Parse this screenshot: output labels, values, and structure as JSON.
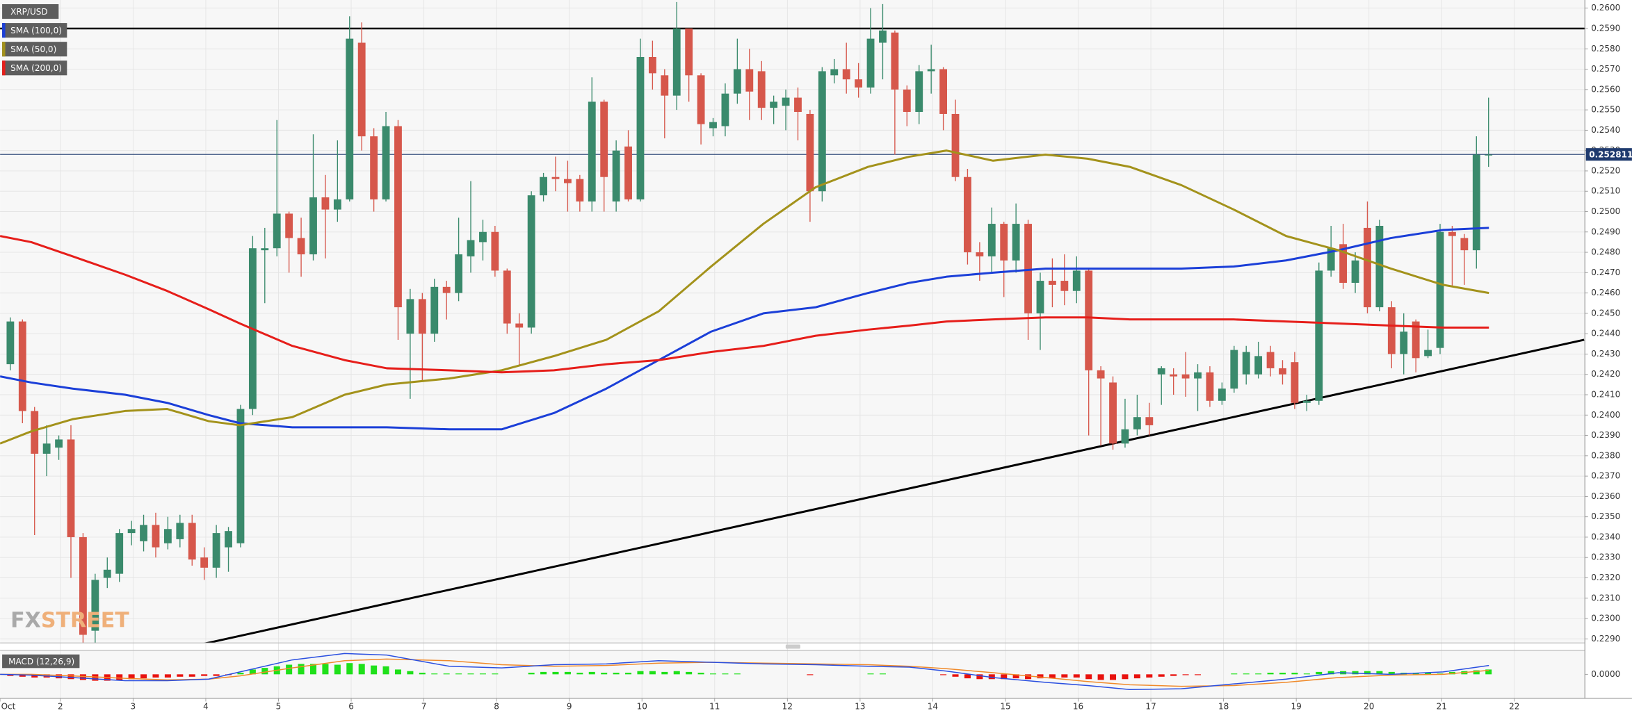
{
  "chart_data": {
    "type": "candlestick",
    "title": "XRP/USD",
    "xlim": [
      1.17,
      22.97
    ],
    "xticks": [
      {
        "value": 1,
        "label": "Oct"
      },
      2,
      3,
      4,
      5,
      6,
      7,
      8,
      9,
      10,
      11,
      12,
      13,
      14,
      15,
      16,
      17,
      18,
      19,
      20,
      21,
      22
    ],
    "ylim": [
      0.2288,
      0.2604
    ],
    "yticks": [
      {
        "value": 0.229,
        "label": "0.2290"
      },
      {
        "value": 0.23,
        "label": "0.2300"
      },
      {
        "value": 0.231,
        "label": "0.2310"
      },
      {
        "value": 0.232,
        "label": "0.2320"
      },
      {
        "value": 0.233,
        "label": "0.2330"
      },
      {
        "value": 0.234,
        "label": "0.2340"
      },
      {
        "value": 0.235,
        "label": "0.2350"
      },
      {
        "value": 0.236,
        "label": "0.2360"
      },
      {
        "value": 0.237,
        "label": "0.2370"
      },
      {
        "value": 0.238,
        "label": "0.2380"
      },
      {
        "value": 0.239,
        "label": "0.2390"
      },
      {
        "value": 0.24,
        "label": "0.2400"
      },
      {
        "value": 0.241,
        "label": "0.2410"
      },
      {
        "value": 0.242,
        "label": "0.2420"
      },
      {
        "value": 0.243,
        "label": "0.2430"
      },
      {
        "value": 0.244,
        "label": "0.2440"
      },
      {
        "value": 0.245,
        "label": "0.2450"
      },
      {
        "value": 0.246,
        "label": "0.2460"
      },
      {
        "value": 0.247,
        "label": "0.2470"
      },
      {
        "value": 0.248,
        "label": "0.2480"
      },
      {
        "value": 0.249,
        "label": "0.2490"
      },
      {
        "value": 0.25,
        "label": "0.2500"
      },
      {
        "value": 0.251,
        "label": "0.2510"
      },
      {
        "value": 0.252,
        "label": "0.2520"
      },
      {
        "value": 0.253,
        "label": "0.2530"
      },
      {
        "value": 0.254,
        "label": "0.2540"
      },
      {
        "value": 0.255,
        "label": "0.2550"
      },
      {
        "value": 0.256,
        "label": "0.2560"
      },
      {
        "value": 0.257,
        "label": "0.2570"
      },
      {
        "value": 0.258,
        "label": "0.2580"
      },
      {
        "value": 0.259,
        "label": "0.2590"
      },
      {
        "value": 0.26,
        "label": "0.2600"
      }
    ],
    "grid": true,
    "up_color": "#3a8a6c",
    "down_color": "#d6574b",
    "candles": [
      [
        0.2425,
        0.2448,
        0.2422,
        0.2446
      ],
      [
        0.2446,
        0.2447,
        0.2396,
        0.2402
      ],
      [
        0.2402,
        0.2404,
        0.2341,
        0.2381
      ],
      [
        0.2381,
        0.2395,
        0.237,
        0.2386
      ],
      [
        0.2384,
        0.239,
        0.2378,
        0.2388
      ],
      [
        0.2388,
        0.2395,
        0.232,
        0.234
      ],
      [
        0.234,
        0.2342,
        0.2283,
        0.2292
      ],
      [
        0.2294,
        0.2322,
        0.2288,
        0.2319
      ],
      [
        0.232,
        0.233,
        0.2315,
        0.2324
      ],
      [
        0.2322,
        0.2344,
        0.2318,
        0.2342
      ],
      [
        0.2342,
        0.2348,
        0.2336,
        0.2344
      ],
      [
        0.2338,
        0.2351,
        0.2333,
        0.2346
      ],
      [
        0.2346,
        0.2352,
        0.233,
        0.2335
      ],
      [
        0.2337,
        0.235,
        0.2334,
        0.2344
      ],
      [
        0.2339,
        0.2351,
        0.2335,
        0.2347
      ],
      [
        0.2347,
        0.2351,
        0.2326,
        0.2329
      ],
      [
        0.233,
        0.2335,
        0.2319,
        0.2325
      ],
      [
        0.2325,
        0.2346,
        0.232,
        0.2342
      ],
      [
        0.2335,
        0.2345,
        0.2323,
        0.2343
      ],
      [
        0.2337,
        0.2405,
        0.2335,
        0.2403
      ],
      [
        0.2403,
        0.2488,
        0.24,
        0.2482
      ],
      [
        0.2481,
        0.2492,
        0.2455,
        0.2482
      ],
      [
        0.2482,
        0.2545,
        0.2478,
        0.2499
      ],
      [
        0.2499,
        0.25,
        0.247,
        0.2487
      ],
      [
        0.2487,
        0.2497,
        0.2468,
        0.2479
      ],
      [
        0.2479,
        0.2538,
        0.2476,
        0.2507
      ],
      [
        0.2507,
        0.2518,
        0.2477,
        0.2501
      ],
      [
        0.2501,
        0.2535,
        0.2495,
        0.2506
      ],
      [
        0.2506,
        0.2596,
        0.2505,
        0.2585
      ],
      [
        0.2583,
        0.2593,
        0.253,
        0.2537
      ],
      [
        0.2537,
        0.2541,
        0.25,
        0.2506
      ],
      [
        0.2506,
        0.2549,
        0.2505,
        0.2542
      ],
      [
        0.2542,
        0.2545,
        0.2437,
        0.2453
      ],
      [
        0.244,
        0.2462,
        0.2408,
        0.2457
      ],
      [
        0.2457,
        0.246,
        0.2417,
        0.244
      ],
      [
        0.244,
        0.2467,
        0.2436,
        0.2463
      ],
      [
        0.2463,
        0.2466,
        0.2447,
        0.246
      ],
      [
        0.246,
        0.2497,
        0.2456,
        0.2479
      ],
      [
        0.2478,
        0.2515,
        0.247,
        0.2486
      ],
      [
        0.2485,
        0.2496,
        0.2476,
        0.249
      ],
      [
        0.249,
        0.2493,
        0.2468,
        0.2471
      ],
      [
        0.2471,
        0.2472,
        0.244,
        0.2445
      ],
      [
        0.2445,
        0.245,
        0.2424,
        0.2443
      ],
      [
        0.2443,
        0.251,
        0.244,
        0.2508
      ],
      [
        0.2508,
        0.2519,
        0.2505,
        0.2517
      ],
      [
        0.2517,
        0.2527,
        0.251,
        0.2516
      ],
      [
        0.2516,
        0.2525,
        0.25,
        0.2514
      ],
      [
        0.2516,
        0.2518,
        0.25,
        0.2505
      ],
      [
        0.2505,
        0.2566,
        0.25,
        0.2554
      ],
      [
        0.2554,
        0.2555,
        0.25,
        0.2517
      ],
      [
        0.2505,
        0.2535,
        0.25,
        0.253
      ],
      [
        0.2532,
        0.254,
        0.2505,
        0.2506
      ],
      [
        0.2506,
        0.2585,
        0.2505,
        0.2576
      ],
      [
        0.2576,
        0.2584,
        0.256,
        0.2568
      ],
      [
        0.2567,
        0.257,
        0.2536,
        0.2557
      ],
      [
        0.2557,
        0.2603,
        0.255,
        0.259
      ],
      [
        0.259,
        0.259,
        0.2554,
        0.2567
      ],
      [
        0.2567,
        0.2568,
        0.2533,
        0.2543
      ],
      [
        0.2541,
        0.2546,
        0.2537,
        0.2544
      ],
      [
        0.2542,
        0.2563,
        0.2537,
        0.2558
      ],
      [
        0.2558,
        0.2585,
        0.2553,
        0.257
      ],
      [
        0.257,
        0.258,
        0.2545,
        0.2559
      ],
      [
        0.2569,
        0.2574,
        0.2545,
        0.2551
      ],
      [
        0.2551,
        0.2557,
        0.2543,
        0.2554
      ],
      [
        0.2552,
        0.256,
        0.254,
        0.2556
      ],
      [
        0.2556,
        0.2561,
        0.2535,
        0.2549
      ],
      [
        0.2548,
        0.255,
        0.2495,
        0.251
      ],
      [
        0.251,
        0.2571,
        0.2505,
        0.2569
      ],
      [
        0.2567,
        0.2575,
        0.2563,
        0.257
      ],
      [
        0.257,
        0.2583,
        0.2558,
        0.2565
      ],
      [
        0.2565,
        0.2573,
        0.2556,
        0.2561
      ],
      [
        0.2561,
        0.26,
        0.2558,
        0.2585
      ],
      [
        0.2583,
        0.2602,
        0.2565,
        0.2589
      ],
      [
        0.2588,
        0.2589,
        0.2528,
        0.256
      ],
      [
        0.256,
        0.2562,
        0.2542,
        0.2549
      ],
      [
        0.2549,
        0.2572,
        0.2543,
        0.2569
      ],
      [
        0.2569,
        0.2582,
        0.2558,
        0.257
      ],
      [
        0.257,
        0.2571,
        0.254,
        0.2548
      ],
      [
        0.2548,
        0.2555,
        0.2515,
        0.2517
      ],
      [
        0.2517,
        0.2521,
        0.2474,
        0.248
      ],
      [
        0.248,
        0.2485,
        0.2466,
        0.2478
      ],
      [
        0.2478,
        0.2502,
        0.247,
        0.2494
      ],
      [
        0.2494,
        0.2495,
        0.2458,
        0.2476
      ],
      [
        0.2476,
        0.2504,
        0.247,
        0.2494
      ],
      [
        0.2494,
        0.2496,
        0.2437,
        0.245
      ],
      [
        0.245,
        0.247,
        0.2432,
        0.2466
      ],
      [
        0.2466,
        0.2477,
        0.2453,
        0.2464
      ],
      [
        0.2466,
        0.2479,
        0.2454,
        0.2461
      ],
      [
        0.2461,
        0.2478,
        0.2455,
        0.2471
      ],
      [
        0.2471,
        0.2472,
        0.239,
        0.2422
      ],
      [
        0.2422,
        0.2424,
        0.2385,
        0.2418
      ],
      [
        0.2416,
        0.2419,
        0.2383,
        0.2386
      ],
      [
        0.2386,
        0.2408,
        0.2384,
        0.2393
      ],
      [
        0.2393,
        0.241,
        0.239,
        0.2399
      ],
      [
        0.2399,
        0.2406,
        0.239,
        0.2395
      ],
      [
        0.242,
        0.2424,
        0.2405,
        0.2423
      ],
      [
        0.242,
        0.2423,
        0.241,
        0.2419
      ],
      [
        0.242,
        0.2431,
        0.2409,
        0.2418
      ],
      [
        0.2418,
        0.2425,
        0.2402,
        0.2421
      ],
      [
        0.2421,
        0.2424,
        0.2404,
        0.2407
      ],
      [
        0.2407,
        0.2416,
        0.2405,
        0.2413
      ],
      [
        0.2413,
        0.2434,
        0.2411,
        0.2432
      ],
      [
        0.242,
        0.2434,
        0.2415,
        0.2431
      ],
      [
        0.242,
        0.2436,
        0.2418,
        0.2429
      ],
      [
        0.2431,
        0.2434,
        0.2419,
        0.2423
      ],
      [
        0.2423,
        0.2427,
        0.2415,
        0.242
      ],
      [
        0.2426,
        0.2431,
        0.2403,
        0.2406
      ],
      [
        0.2406,
        0.241,
        0.2402,
        0.2407
      ],
      [
        0.2407,
        0.2475,
        0.2405,
        0.2471
      ],
      [
        0.2471,
        0.2493,
        0.2468,
        0.2482
      ],
      [
        0.2484,
        0.2494,
        0.2462,
        0.2465
      ],
      [
        0.2465,
        0.248,
        0.246,
        0.2476
      ],
      [
        0.2492,
        0.2505,
        0.245,
        0.2453
      ],
      [
        0.2453,
        0.2496,
        0.2451,
        0.2493
      ],
      [
        0.2453,
        0.2456,
        0.2423,
        0.243
      ],
      [
        0.243,
        0.245,
        0.242,
        0.2441
      ],
      [
        0.2446,
        0.2447,
        0.2421,
        0.2428
      ],
      [
        0.2429,
        0.2442,
        0.2428,
        0.2432
      ],
      [
        0.2433,
        0.2494,
        0.243,
        0.249
      ],
      [
        0.249,
        0.2493,
        0.2463,
        0.2488
      ],
      [
        0.2487,
        0.2489,
        0.2464,
        0.2481
      ],
      [
        0.2481,
        0.2537,
        0.2472,
        0.2528
      ],
      [
        0.2528,
        0.2556,
        0.2522,
        0.2528
      ]
    ],
    "x": [
      1.17,
      1.6,
      2.17,
      2.89,
      3.47,
      4.04,
      4.47,
      5.19,
      5.91,
      6.49,
      7.35,
      8.07,
      8.79,
      9.51,
      10.23,
      10.95,
      11.67,
      12.39,
      13.11,
      13.68,
      14.19,
      14.83,
      15.55,
      16.13,
      16.71,
      17.42,
      18.14,
      18.86,
      19.58,
      20.3,
      21.02,
      21.65
    ],
    "series": [
      {
        "name": "SMA (100,0)",
        "color": "#1b3fd8",
        "values": [
          0.2419,
          0.2416,
          0.2413,
          0.241,
          0.2406,
          0.24,
          0.2396,
          0.2394,
          0.2394,
          0.2394,
          0.2393,
          0.2393,
          0.2401,
          0.2413,
          0.2427,
          0.2441,
          0.245,
          0.2453,
          0.246,
          0.2465,
          0.2468,
          0.247,
          0.2472,
          0.2472,
          0.2472,
          0.2472,
          0.2473,
          0.2476,
          0.2481,
          0.2487,
          0.2491,
          0.2492
        ]
      },
      {
        "name": "SMA (50,0)",
        "color": "#a3921b",
        "values": [
          0.2386,
          0.2392,
          0.2398,
          0.2402,
          0.2403,
          0.2397,
          0.2395,
          0.2399,
          0.241,
          0.2415,
          0.2418,
          0.2422,
          0.2429,
          0.2437,
          0.2451,
          0.2473,
          0.2494,
          0.2512,
          0.2522,
          0.2527,
          0.253,
          0.2525,
          0.2528,
          0.2526,
          0.2522,
          0.2513,
          0.2501,
          0.2488,
          0.2481,
          0.2472,
          0.2464,
          0.246
        ]
      },
      {
        "name": "SMA (200,0)",
        "color": "#e61e1a",
        "values": [
          0.2488,
          0.2485,
          0.2478,
          0.2469,
          0.2461,
          0.2452,
          0.2445,
          0.2434,
          0.2427,
          0.2423,
          0.2422,
          0.2421,
          0.2422,
          0.2425,
          0.2427,
          0.2431,
          0.2434,
          0.2439,
          0.2442,
          0.2444,
          0.2446,
          0.2447,
          0.2448,
          0.2448,
          0.2447,
          0.2447,
          0.2447,
          0.2446,
          0.2445,
          0.2444,
          0.2443,
          0.2443
        ]
      }
    ],
    "resistance": {
      "value": 0.259,
      "color": "#000000"
    },
    "trendline": {
      "x": [
        3.9,
        22.96
      ],
      "values": [
        0.2287,
        0.2437
      ],
      "color": "#000000"
    },
    "last_price": 0.252811,
    "last_price_color": "#1f3a6e",
    "macd": {
      "title": "MACD (12,26,9)",
      "ylim": [
        -0.003,
        0.003
      ],
      "yticks": [
        {
          "value": 0,
          "label": "0.0000"
        }
      ],
      "up_color": "#1fe01a",
      "down_color": "#e8120e",
      "histogram": [
        -0.0002,
        -0.0003,
        -0.0004,
        -0.0004,
        -0.0005,
        -0.0006,
        -0.0007,
        -0.0008,
        -0.0008,
        -0.0007,
        -0.0006,
        -0.0005,
        -0.0004,
        -0.0004,
        -0.0003,
        -0.0003,
        -0.0002,
        -0.0002,
        -0.0001,
        0.0002,
        0.0006,
        0.0008,
        0.001,
        0.0012,
        0.0013,
        0.0013,
        0.0013,
        0.0012,
        0.0014,
        0.0013,
        0.0011,
        0.001,
        0.0006,
        0.0004,
        0.0002,
        0.0001,
        0.0001,
        0.0001,
        0.0001,
        0.0001,
        0.0001,
        0,
        0,
        0.0002,
        0.0003,
        0.0003,
        0.0003,
        0.0002,
        0.0003,
        0.0002,
        0.0002,
        0.0002,
        0.0004,
        0.0004,
        0.0003,
        0.0004,
        0.0003,
        0.0002,
        0.0001,
        0.0001,
        0.0001,
        0,
        0,
        0,
        0,
        0,
        -0.0001,
        0,
        0,
        0,
        0,
        0.0001,
        0.0001,
        0,
        0,
        0,
        0,
        -0.0001,
        -0.0003,
        -0.0005,
        -0.0006,
        -0.0006,
        -0.0006,
        -0.0005,
        -0.0006,
        -0.0005,
        -0.0005,
        -0.0004,
        -0.0004,
        -0.0006,
        -0.0007,
        -0.0007,
        -0.0006,
        -0.0005,
        -0.0004,
        -0.0003,
        -0.0002,
        -0.0001,
        -0.0001,
        0,
        0,
        0.0001,
        0.0001,
        0.0001,
        0.0002,
        0.0002,
        0.0002,
        0.0001,
        0.0003,
        0.0004,
        0.0004,
        0.0004,
        0.0004,
        0.0004,
        0.0003,
        0.0002,
        0.0002,
        0.0002,
        0.0001,
        0.0003,
        0.0004,
        0.0005,
        0.0006
      ],
      "macd_line": {
        "color": "#2a4fe0",
        "values": [
          0,
          -0.0001,
          -0.0004,
          -0.0008,
          -0.0008,
          -0.0006,
          0.0003,
          0.0018,
          0.0026,
          0.0024,
          0.001,
          0.0008,
          0.0012,
          0.0013,
          0.0017,
          0.0015,
          0.0013,
          0.0012,
          0.001,
          0.0009,
          0.0004,
          -0.0004,
          -0.001,
          -0.0014,
          -0.0019,
          -0.0018,
          -0.0012,
          -0.0006,
          0.0002,
          0,
          0.0003,
          0.0011
        ]
      },
      "signal_line": {
        "color": "#f08a2a",
        "values": [
          0,
          0,
          -0.0002,
          -0.0005,
          -0.0007,
          -0.0006,
          -0.0002,
          0.0008,
          0.0017,
          0.0019,
          0.0017,
          0.0012,
          0.001,
          0.0011,
          0.0014,
          0.0015,
          0.0014,
          0.0013,
          0.0012,
          0.001,
          0.0007,
          0.0002,
          -0.0004,
          -0.0009,
          -0.0013,
          -0.0015,
          -0.0014,
          -0.001,
          -0.0004,
          -0.0001,
          0,
          0.0005
        ]
      }
    },
    "watermark": [
      "FX",
      "STREET"
    ]
  }
}
